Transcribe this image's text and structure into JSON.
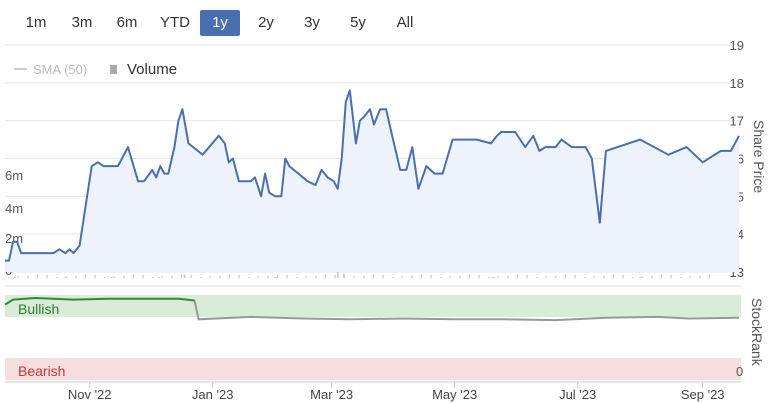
{
  "range_selector": {
    "buttons": [
      "1m",
      "3m",
      "6m",
      "YTD",
      "1y",
      "2y",
      "3y",
      "5y",
      "All"
    ],
    "active": "1y"
  },
  "legend": {
    "sma_label": "SMA (50)",
    "volume_label": "Volume"
  },
  "stockrank_labels": {
    "bullish": "Bullish",
    "bearish": "Bearish"
  },
  "colors": {
    "price_line": "#4a6fb0",
    "price_fill": "#eef2fa",
    "volume_bar": "#cccccc",
    "bullish_band": "#d8ecd8",
    "bearish_band": "#f6dde0",
    "stockrank_bull_line": "#2e8b3a",
    "stockrank_line": "#999999",
    "accent": "#4a6fb0"
  },
  "chart_data": [
    {
      "type": "line",
      "title": "",
      "ylabel": "Share Price",
      "ylim": [
        13,
        19
      ],
      "yticks": [
        13,
        14,
        15,
        16,
        17,
        18,
        19
      ],
      "xticks": [
        "Nov '22",
        "Jan '23",
        "Mar '23",
        "May '23",
        "Jul '23",
        "Sep '23"
      ],
      "xlim": [
        "2022-09-20",
        "2023-09-20"
      ],
      "series": [
        {
          "name": "Share Price",
          "x": [
            "2022-09-20",
            "2022-09-22",
            "2022-09-24",
            "2022-09-26",
            "2022-09-28",
            "2022-10-03",
            "2022-10-10",
            "2022-10-14",
            "2022-10-17",
            "2022-10-20",
            "2022-10-22",
            "2022-10-24",
            "2022-10-27",
            "2022-11-02",
            "2022-11-05",
            "2022-11-08",
            "2022-11-15",
            "2022-11-17",
            "2022-11-20",
            "2022-11-25",
            "2022-11-28",
            "2022-12-02",
            "2022-12-04",
            "2022-12-06",
            "2022-12-08",
            "2022-12-10",
            "2022-12-13",
            "2022-12-15",
            "2022-12-17",
            "2022-12-20",
            "2022-12-27",
            "2023-01-04",
            "2023-01-07",
            "2023-01-09",
            "2023-01-11",
            "2023-01-14",
            "2023-01-18",
            "2023-01-20",
            "2023-01-22",
            "2023-01-25",
            "2023-01-27",
            "2023-01-29",
            "2023-02-01",
            "2023-02-04",
            "2023-02-06",
            "2023-02-08",
            "2023-02-17",
            "2023-02-21",
            "2023-02-24",
            "2023-02-27",
            "2023-03-02",
            "2023-03-04",
            "2023-03-06",
            "2023-03-08",
            "2023-03-10",
            "2023-03-13",
            "2023-03-15",
            "2023-03-17",
            "2023-03-20",
            "2023-03-22",
            "2023-03-25",
            "2023-03-28",
            "2023-03-31",
            "2023-04-04",
            "2023-04-07",
            "2023-04-10",
            "2023-04-13",
            "2023-04-15",
            "2023-04-17",
            "2023-04-21",
            "2023-04-25",
            "2023-04-30",
            "2023-05-12",
            "2023-05-19",
            "2023-05-22",
            "2023-05-24",
            "2023-05-31",
            "2023-06-05",
            "2023-06-09",
            "2023-06-12",
            "2023-06-15",
            "2023-06-20",
            "2023-06-23",
            "2023-06-28",
            "2023-06-30",
            "2023-07-03",
            "2023-07-05",
            "2023-07-08",
            "2023-07-12",
            "2023-07-15",
            "2023-08-01",
            "2023-08-15",
            "2023-08-24",
            "2023-08-28",
            "2023-09-01",
            "2023-09-10",
            "2023-09-15",
            "2023-09-19"
          ],
          "values": [
            13.3,
            13.3,
            13.8,
            13.8,
            13.5,
            13.5,
            13.5,
            13.5,
            13.6,
            13.5,
            13.6,
            13.5,
            13.7,
            15.8,
            15.9,
            15.8,
            15.8,
            16.0,
            16.3,
            15.4,
            15.4,
            15.7,
            15.5,
            15.8,
            15.6,
            15.6,
            16.3,
            17.0,
            17.3,
            16.4,
            16.1,
            16.6,
            16.4,
            15.9,
            16.0,
            15.4,
            15.4,
            15.4,
            15.5,
            15.0,
            15.6,
            15.1,
            15.0,
            15.0,
            16.0,
            15.8,
            15.4,
            15.3,
            15.7,
            15.5,
            15.4,
            15.2,
            16.0,
            17.5,
            17.8,
            16.4,
            17.0,
            17.1,
            17.3,
            16.9,
            17.3,
            17.3,
            16.6,
            15.7,
            15.7,
            16.3,
            15.2,
            15.5,
            15.8,
            15.6,
            15.6,
            16.5,
            16.5,
            16.4,
            16.6,
            16.7,
            16.7,
            16.3,
            16.6,
            16.2,
            16.3,
            16.3,
            16.5,
            16.3,
            16.3,
            16.3,
            16.3,
            16.0,
            14.3,
            16.2,
            16.5,
            16.1,
            16.3,
            16.1,
            15.9,
            16.2,
            16.2,
            16.6
          ]
        },
        {
          "name": "Volume",
          "x": [
            "2022-09-25",
            "2022-10-20",
            "2022-11-12",
            "2022-12-05",
            "2022-12-18",
            "2023-02-01",
            "2023-03-04",
            "2023-03-07",
            "2023-04-10",
            "2023-05-20",
            "2023-06-20",
            "2023-08-01"
          ],
          "values": [
            1,
            2,
            1,
            0,
            5,
            1,
            60,
            6,
            1,
            1,
            1,
            1
          ]
        }
      ]
    },
    {
      "type": "line",
      "title": "",
      "ylabel": "StockRank",
      "ylim": [
        0,
        100
      ],
      "yticks": [
        0
      ],
      "series": [
        {
          "name": "StockRank",
          "x": [
            "2022-09-20",
            "2022-09-24",
            "2022-10-05",
            "2022-10-24",
            "2022-11-10",
            "2022-11-30",
            "2022-12-15",
            "2022-12-23",
            "2022-12-25",
            "2023-01-20",
            "2023-02-15",
            "2023-03-10",
            "2023-04-05",
            "2023-05-01",
            "2023-05-25",
            "2023-06-20",
            "2023-07-15",
            "2023-08-10",
            "2023-08-25",
            "2023-09-19"
          ],
          "values": [
            92,
            98,
            100,
            98,
            99,
            99,
            99,
            97,
            74,
            77,
            75,
            74,
            75,
            74,
            74,
            73,
            76,
            77,
            75,
            76
          ]
        }
      ]
    }
  ]
}
